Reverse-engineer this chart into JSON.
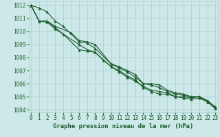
{
  "xlabel": "Graphe pression niveau de la mer (hPa)",
  "ylim": [
    1003.8,
    1012.3
  ],
  "xlim": [
    -0.3,
    23.3
  ],
  "yticks": [
    1004,
    1005,
    1006,
    1007,
    1008,
    1009,
    1010,
    1011,
    1012
  ],
  "xticks": [
    0,
    1,
    2,
    3,
    4,
    5,
    6,
    7,
    8,
    9,
    10,
    11,
    12,
    13,
    14,
    15,
    16,
    17,
    18,
    19,
    20,
    21,
    22,
    23
  ],
  "background_color": "#cce8e8",
  "grid_color": "#aacccc",
  "line_color": "#1a5c2a",
  "lines": [
    {
      "x": [
        0,
        1,
        2,
        3,
        4,
        6,
        7,
        8,
        10,
        11,
        12,
        13,
        14,
        15,
        16,
        17,
        18,
        19,
        20,
        21,
        22,
        23
      ],
      "y": [
        1012.0,
        1011.8,
        1011.5,
        1010.8,
        1010.4,
        1009.2,
        1009.1,
        1008.7,
        1007.5,
        1007.3,
        1007.0,
        1006.7,
        1006.0,
        1006.0,
        1005.9,
        1005.5,
        1005.3,
        1005.2,
        1005.0,
        1005.0,
        1004.7,
        1004.2
      ]
    },
    {
      "x": [
        0,
        1,
        2,
        3,
        5,
        6,
        7,
        8,
        10,
        11,
        12,
        13,
        14,
        15,
        16,
        17,
        18,
        19,
        20,
        21,
        22,
        23
      ],
      "y": [
        1012.0,
        1010.8,
        1010.8,
        1010.4,
        1009.9,
        1009.3,
        1009.2,
        1009.0,
        1007.5,
        1007.2,
        1006.9,
        1006.5,
        1006.0,
        1005.9,
        1005.7,
        1005.4,
        1005.2,
        1005.1,
        1005.0,
        1005.0,
        1004.7,
        1004.2
      ]
    },
    {
      "x": [
        0,
        1,
        2,
        3,
        4,
        6,
        7,
        8,
        10,
        11,
        12,
        13,
        14,
        15,
        16,
        17,
        18,
        19,
        20,
        21,
        22,
        23
      ],
      "y": [
        1012.0,
        1010.8,
        1010.8,
        1010.3,
        1009.8,
        1009.0,
        1008.6,
        1008.4,
        1007.3,
        1006.9,
        1006.5,
        1006.2,
        1005.8,
        1005.5,
        1005.4,
        1005.3,
        1005.0,
        1005.0,
        1004.9,
        1005.0,
        1004.6,
        1004.1
      ]
    },
    {
      "x": [
        0,
        1,
        2,
        3,
        4,
        6,
        7,
        8,
        9,
        10,
        11,
        12,
        13,
        14,
        15,
        16,
        17,
        18,
        19,
        20,
        21,
        22,
        23
      ],
      "y": [
        1012.0,
        1010.8,
        1010.7,
        1010.2,
        1009.8,
        1008.6,
        1008.5,
        1008.4,
        1007.8,
        1007.3,
        1007.0,
        1006.6,
        1006.3,
        1005.7,
        1005.4,
        1005.2,
        1005.2,
        1005.0,
        1004.9,
        1004.8,
        1004.9,
        1004.6,
        1004.1
      ]
    }
  ],
  "marker": "^",
  "marker_size": 2.5,
  "line_width": 0.8,
  "font_color": "#1a5c2a",
  "font_size_label": 6.5,
  "font_size_tick": 5.5
}
